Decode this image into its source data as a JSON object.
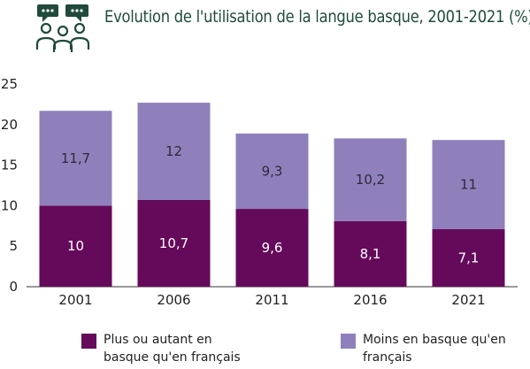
{
  "header": {
    "title": "Evolution de l'utilisation de la langue basque, 2001-2021 (%)",
    "icon": "people-speech-bubbles-icon"
  },
  "colors": {
    "title": "#1f4a3c",
    "icon": "#1f4a3c",
    "series_basque": "#650a5a",
    "series_moins": "#8f80bc"
  },
  "chart_data": {
    "type": "bar",
    "stacked": true,
    "categories": [
      "2001",
      "2006",
      "2011",
      "2016",
      "2021"
    ],
    "series": [
      {
        "name": "Plus ou autant en basque qu'en français",
        "values": [
          10,
          10.7,
          9.6,
          8.1,
          7.1
        ],
        "labels": [
          "10",
          "10,7",
          "9,6",
          "8,1",
          "7,1"
        ],
        "color": "#650a5a",
        "label_color": "#ffffff"
      },
      {
        "name": "Moins en basque qu'en français",
        "values": [
          11.7,
          12,
          9.3,
          10.2,
          11
        ],
        "labels": [
          "11,7",
          "12",
          "9,3",
          "10,2",
          "11"
        ],
        "color": "#8f80bc",
        "label_color": "#2b2b3a"
      }
    ],
    "ylim": [
      0,
      25
    ],
    "yticks": [
      0,
      5,
      10,
      15,
      20,
      25
    ],
    "grid": false,
    "legend_position": "bottom"
  },
  "legend": {
    "items": [
      {
        "label": "Plus ou autant en basque qu'en français"
      },
      {
        "label": "Moins en basque qu'en français"
      }
    ]
  }
}
